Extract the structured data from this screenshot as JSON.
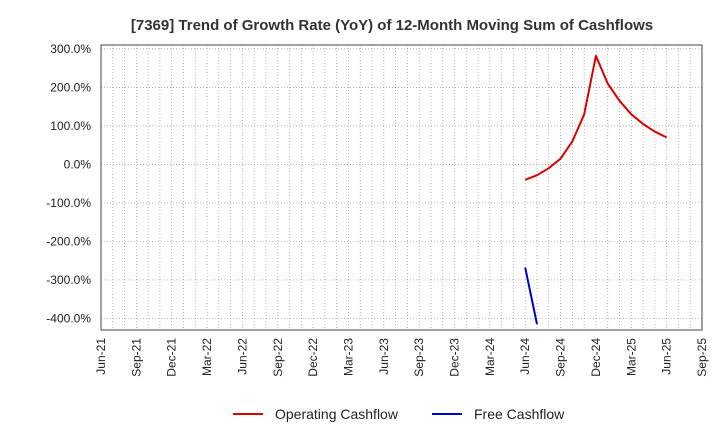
{
  "chart_data": {
    "type": "line",
    "title": "[7369]  Trend of Growth Rate (YoY) of 12-Month Moving Sum of Cashflows",
    "xlabel": "",
    "ylabel": "",
    "x_tick_labels": [
      "Jun-21",
      "Sep-21",
      "Dec-21",
      "Mar-22",
      "Jun-22",
      "Sep-22",
      "Dec-22",
      "Mar-23",
      "Jun-23",
      "Sep-23",
      "Dec-23",
      "Mar-24",
      "Jun-24",
      "Sep-24",
      "Dec-24",
      "Mar-25",
      "Jun-25",
      "Sep-25"
    ],
    "x_range": [
      "2021-06",
      "2025-09"
    ],
    "y_tick_labels": [
      "300.0%",
      "200.0%",
      "100.0%",
      "0.0%",
      "-100.0%",
      "-200.0%",
      "-300.0%",
      "-400.0%"
    ],
    "y_ticks": [
      300,
      200,
      100,
      0,
      -100,
      -200,
      -300,
      -400
    ],
    "ylim": [
      -430,
      310
    ],
    "grid": true,
    "legend_position": "bottom",
    "series": [
      {
        "name": "Operating Cashflow",
        "color": "#dd0000",
        "points": [
          {
            "x": "2024-06",
            "y": -40
          },
          {
            "x": "2024-07",
            "y": -28
          },
          {
            "x": "2024-08",
            "y": -10
          },
          {
            "x": "2024-09",
            "y": 15
          },
          {
            "x": "2024-10",
            "y": 60
          },
          {
            "x": "2024-11",
            "y": 130
          },
          {
            "x": "2024-12",
            "y": 282
          },
          {
            "x": "2025-01",
            "y": 210
          },
          {
            "x": "2025-02",
            "y": 165
          },
          {
            "x": "2025-03",
            "y": 130
          },
          {
            "x": "2025-04",
            "y": 105
          },
          {
            "x": "2025-05",
            "y": 85
          },
          {
            "x": "2025-06",
            "y": 70
          }
        ]
      },
      {
        "name": "Free Cashflow",
        "color": "#0000cc",
        "points": [
          {
            "x": "2024-06",
            "y": -268
          },
          {
            "x": "2024-07",
            "y": -415
          }
        ]
      }
    ]
  }
}
